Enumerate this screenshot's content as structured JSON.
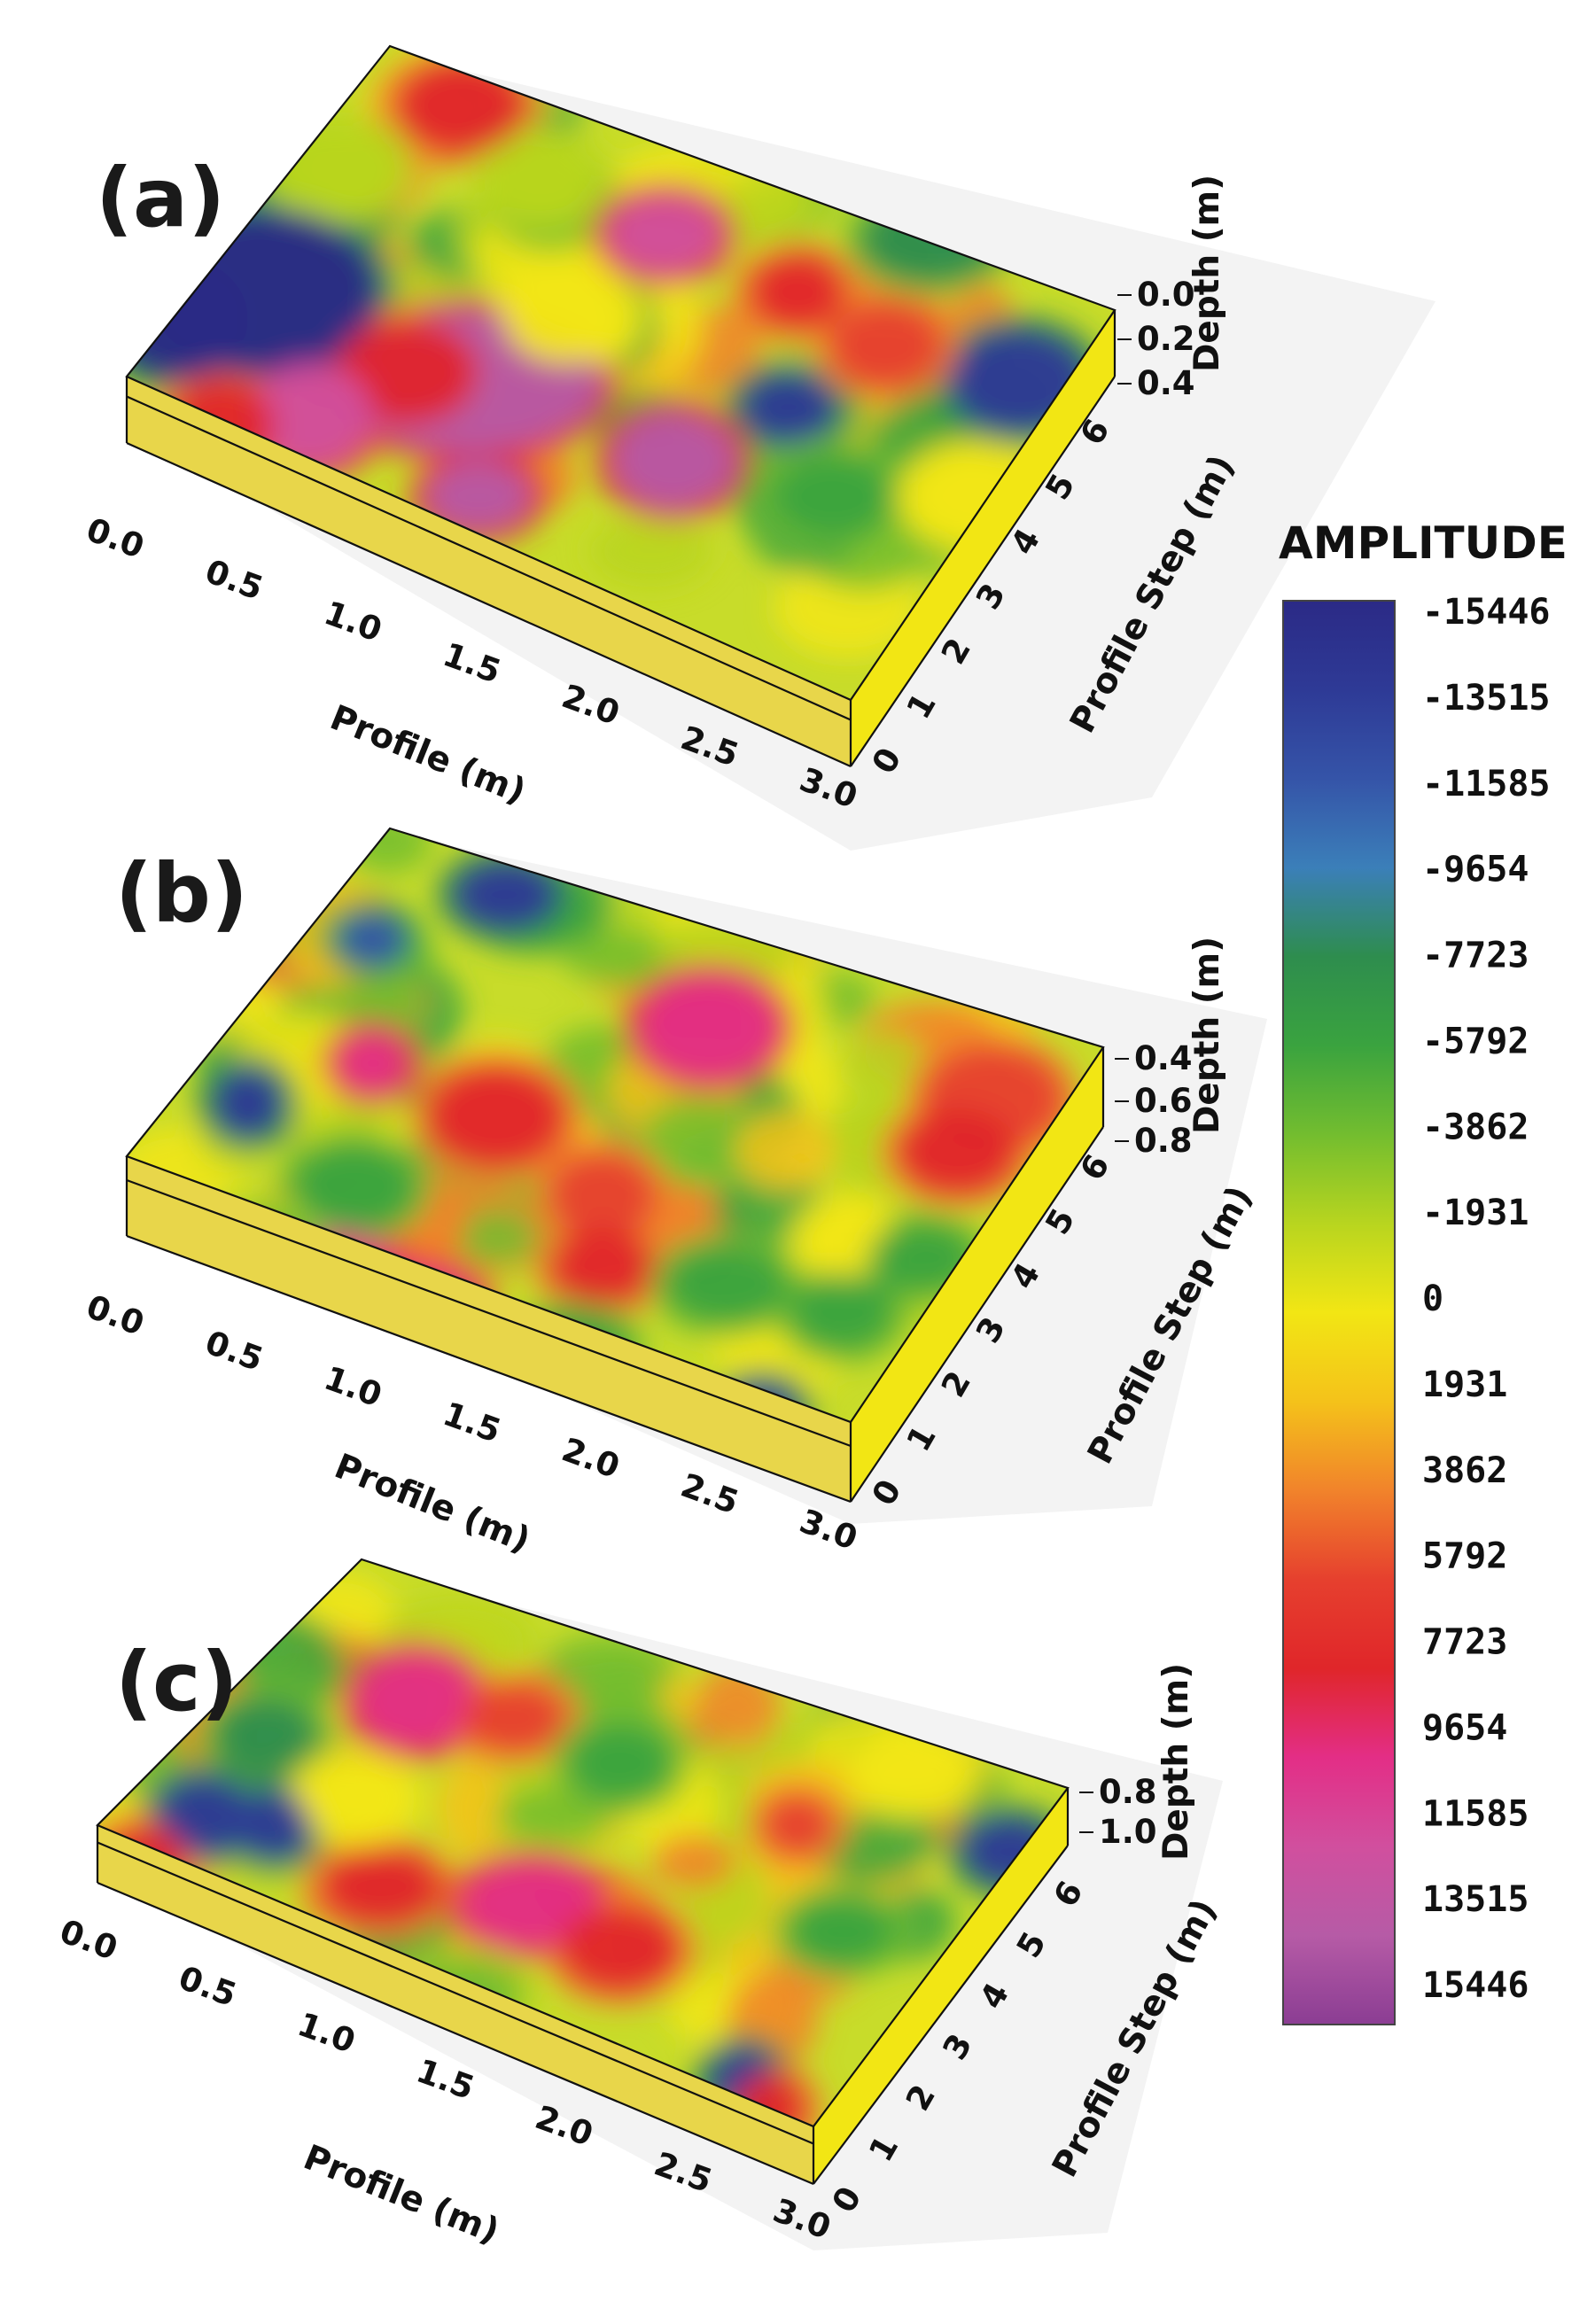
{
  "chart_data": {
    "type": "heatmap",
    "colorbar": {
      "title": "AMPLITUDE",
      "tick_labels": [
        "-15446",
        "-13515",
        "-11585",
        "-9654",
        "-7723",
        "-5792",
        "-3862",
        "-1931",
        "0",
        "1931",
        "3862",
        "5792",
        "7723",
        "9654",
        "11585",
        "13515",
        "15446"
      ],
      "range": [
        -15446,
        15446
      ],
      "colors": [
        "#2b2a86",
        "#2e3a96",
        "#3554a8",
        "#3b7fb9",
        "#2e8d4e",
        "#3aa33f",
        "#73bd2f",
        "#b8d51f",
        "#f2e614",
        "#f4c21a",
        "#f1832b",
        "#e6402e",
        "#e0262a",
        "#e32e86",
        "#d14f9e",
        "#b65ba6",
        "#8b3d93"
      ]
    },
    "panels": [
      {
        "label": "(a)",
        "profile_label": "Profile (m)",
        "profile_ticks": [
          "0.0",
          "0.5",
          "1.0",
          "1.5",
          "2.0",
          "2.5",
          "3.0"
        ],
        "step_label": "Profile Step (m)",
        "step_ticks": [
          "0",
          "1",
          "2",
          "3",
          "4",
          "5",
          "6"
        ],
        "depth_label": "Depth (m)",
        "depth_ticks": [
          "0.0",
          "0.2",
          "0.4"
        ],
        "depth_range": [
          0.0,
          0.4
        ]
      },
      {
        "label": "(b)",
        "profile_label": "Profile (m)",
        "profile_ticks": [
          "0.0",
          "0.5",
          "1.0",
          "1.5",
          "2.0",
          "2.5",
          "3.0"
        ],
        "step_label": "Profile Step (m)",
        "step_ticks": [
          "0",
          "1",
          "2",
          "3",
          "4",
          "5",
          "6"
        ],
        "depth_label": "Depth (m)",
        "depth_ticks": [
          "0.4",
          "0.6",
          "0.8"
        ],
        "depth_range": [
          0.4,
          0.8
        ]
      },
      {
        "label": "(c)",
        "profile_label": "Profile (m)",
        "profile_ticks": [
          "0.0",
          "0.5",
          "1.0",
          "1.5",
          "2.0",
          "2.5",
          "3.0"
        ],
        "step_label": "Profile Step (m)",
        "step_ticks": [
          "0",
          "1",
          "2",
          "3",
          "4",
          "5",
          "6"
        ],
        "depth_label": "Depth (m)",
        "depth_ticks": [
          "0.8",
          "1.0"
        ],
        "depth_range": [
          0.8,
          1.0
        ]
      }
    ]
  }
}
